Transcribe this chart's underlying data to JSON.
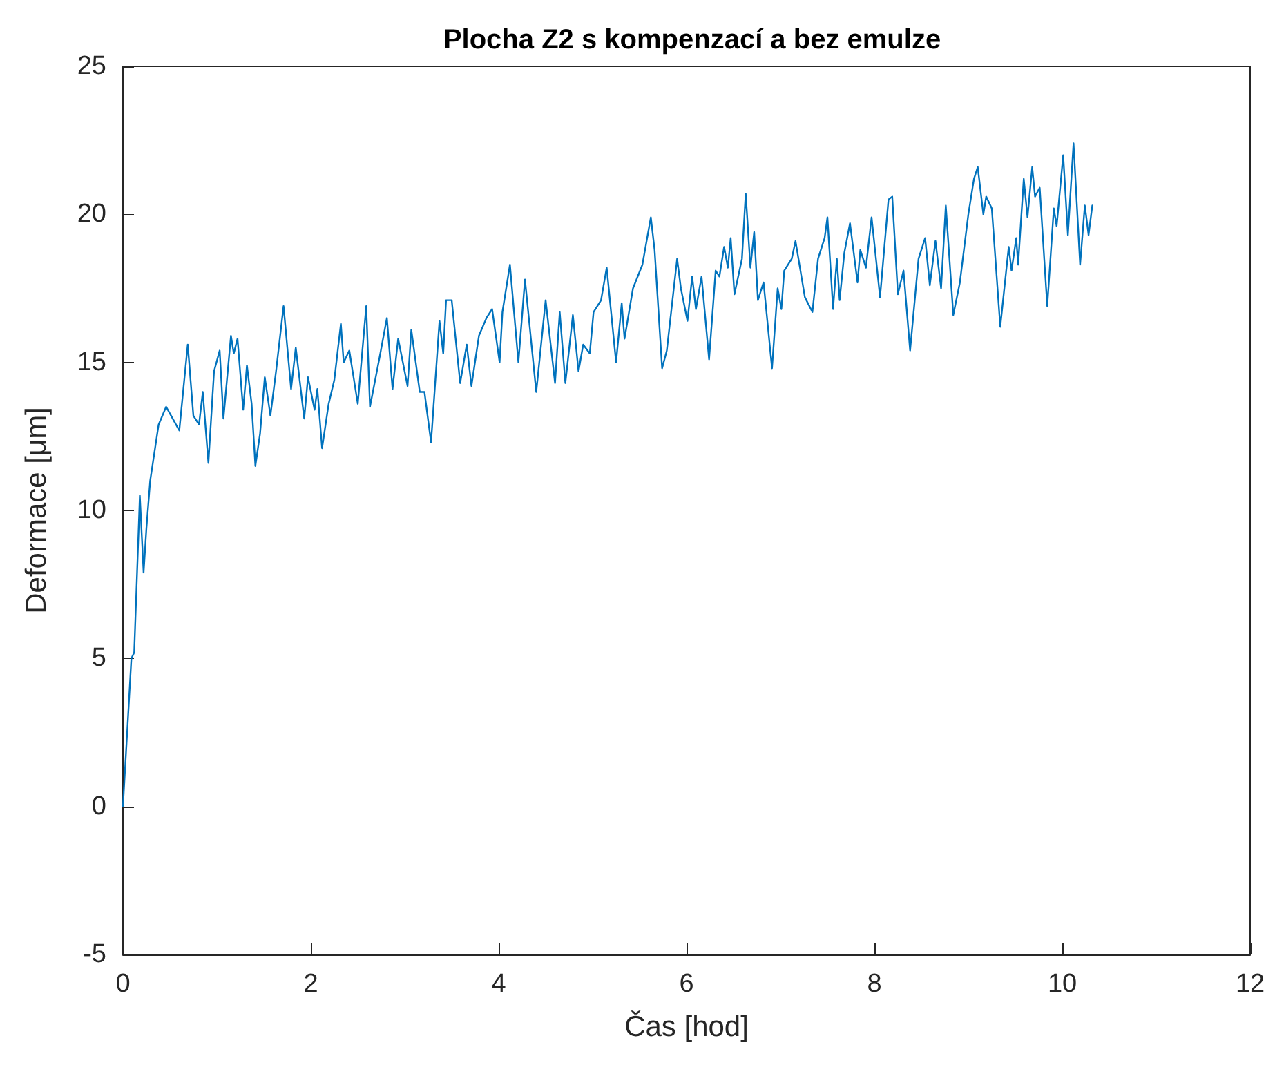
{
  "chart_data": {
    "type": "line",
    "title": "Plocha Z2 s kompenzací a bez emulze",
    "xlabel": "Čas [hod]",
    "ylabel": "Deformace [μm]",
    "xlim": [
      0,
      12
    ],
    "xticks": [
      0,
      2,
      4,
      6,
      8,
      10,
      12
    ],
    "ylim": [
      -5,
      25
    ],
    "yticks": [
      -5,
      0,
      5,
      10,
      15,
      20,
      25
    ],
    "grid": false,
    "marker": "none",
    "line_style": "solid",
    "series": [
      {
        "color": "#0072bd",
        "x": [
          0,
          0.09,
          0.12,
          0.18,
          0.22,
          0.25,
          0.29,
          0.38,
          0.46,
          0.53,
          0.6,
          0.69,
          0.75,
          0.81,
          0.85,
          0.91,
          0.97,
          1.03,
          1.07,
          1.15,
          1.18,
          1.22,
          1.28,
          1.32,
          1.37,
          1.41,
          1.46,
          1.51,
          1.57,
          1.63,
          1.71,
          1.79,
          1.84,
          1.93,
          1.97,
          2.04,
          2.07,
          2.12,
          2.19,
          2.25,
          2.32,
          2.35,
          2.41,
          2.5,
          2.59,
          2.63,
          2.74,
          2.81,
          2.87,
          2.93,
          3.03,
          3.07,
          3.16,
          3.21,
          3.28,
          3.37,
          3.41,
          3.44,
          3.5,
          3.59,
          3.66,
          3.71,
          3.79,
          3.87,
          3.93,
          4.01,
          4.04,
          4.12,
          4.21,
          4.28,
          4.4,
          4.5,
          4.6,
          4.65,
          4.71,
          4.79,
          4.85,
          4.9,
          4.97,
          5.01,
          5.09,
          5.15,
          5.25,
          5.31,
          5.34,
          5.43,
          5.53,
          5.62,
          5.66,
          5.74,
          5.79,
          5.9,
          5.94,
          6.01,
          6.06,
          6.1,
          6.16,
          6.24,
          6.31,
          6.35,
          6.4,
          6.44,
          6.47,
          6.51,
          6.59,
          6.63,
          6.68,
          6.72,
          6.76,
          6.82,
          6.91,
          6.97,
          7.01,
          7.04,
          7.12,
          7.16,
          7.26,
          7.34,
          7.4,
          7.47,
          7.5,
          7.56,
          7.6,
          7.63,
          7.68,
          7.74,
          7.82,
          7.85,
          7.91,
          7.97,
          8.06,
          8.15,
          8.19,
          8.25,
          8.31,
          8.38,
          8.47,
          8.54,
          8.59,
          8.65,
          8.71,
          8.76,
          8.84,
          8.91,
          9,
          9.06,
          9.1,
          9.16,
          9.19,
          9.25,
          9.34,
          9.43,
          9.46,
          9.51,
          9.53,
          9.59,
          9.63,
          9.68,
          9.71,
          9.76,
          9.84,
          9.91,
          9.94,
          10.01,
          10.06,
          10.12,
          10.19,
          10.24,
          10.28,
          10.32
        ],
        "values": [
          0,
          5.0,
          5.2,
          10.5,
          7.9,
          9.4,
          11.0,
          12.9,
          13.5,
          13.1,
          12.7,
          15.6,
          13.2,
          12.9,
          14.0,
          11.6,
          14.7,
          15.4,
          13.1,
          15.9,
          15.3,
          15.8,
          13.4,
          14.9,
          13.6,
          11.5,
          12.6,
          14.5,
          13.2,
          14.7,
          16.9,
          14.1,
          15.5,
          13.1,
          14.5,
          13.4,
          14.1,
          12.1,
          13.6,
          14.4,
          16.3,
          15.0,
          15.4,
          13.6,
          16.9,
          13.5,
          15.3,
          16.5,
          14.1,
          15.8,
          14.2,
          16.1,
          14.0,
          14.0,
          12.3,
          16.4,
          15.3,
          17.1,
          17.1,
          14.3,
          15.6,
          14.2,
          15.9,
          16.5,
          16.8,
          15.0,
          16.7,
          18.3,
          15.0,
          17.8,
          14.0,
          17.1,
          14.3,
          16.7,
          14.3,
          16.6,
          14.7,
          15.6,
          15.3,
          16.7,
          17.1,
          18.2,
          15.0,
          17.0,
          15.8,
          17.5,
          18.3,
          19.9,
          18.8,
          14.8,
          15.4,
          18.5,
          17.5,
          16.4,
          17.9,
          16.8,
          17.9,
          15.1,
          18.1,
          17.9,
          18.9,
          18.2,
          19.2,
          17.3,
          18.5,
          20.7,
          18.2,
          19.4,
          17.1,
          17.7,
          14.8,
          17.5,
          16.8,
          18.1,
          18.5,
          19.1,
          17.2,
          16.7,
          18.5,
          19.2,
          19.9,
          16.8,
          18.5,
          17.1,
          18.7,
          19.7,
          17.7,
          18.8,
          18.2,
          19.9,
          17.2,
          20.5,
          20.6,
          17.3,
          18.1,
          15.4,
          18.5,
          19.2,
          17.6,
          19.1,
          17.5,
          20.3,
          16.6,
          17.7,
          20.0,
          21.2,
          21.6,
          20.0,
          20.6,
          20.2,
          16.2,
          18.9,
          18.1,
          19.2,
          18.3,
          21.2,
          19.9,
          21.6,
          20.6,
          20.9,
          16.9,
          20.2,
          19.6,
          22.0,
          19.3,
          22.4,
          18.3,
          20.3,
          19.3,
          20.3
        ]
      }
    ]
  }
}
